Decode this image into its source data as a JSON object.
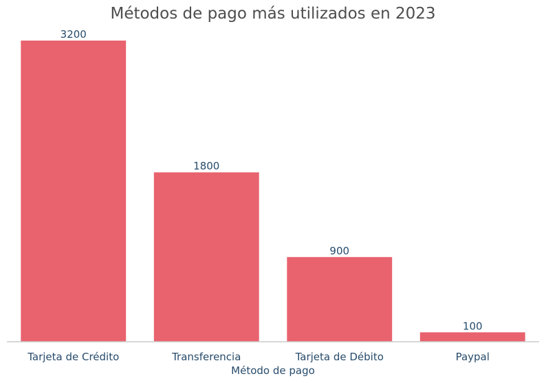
{
  "chart_data": {
    "type": "bar",
    "title": "Métodos de pago más utilizados en 2023",
    "xlabel": "Método de pago",
    "ylabel": "",
    "categories": [
      "Tarjeta de Crédito",
      "Transferencia",
      "Tarjeta de Débito",
      "Paypal"
    ],
    "values": [
      3200,
      1800,
      900,
      100
    ],
    "ylim": [
      0,
      3200
    ],
    "grid": false,
    "legend": "none",
    "bar_color": "#e8636e",
    "text_color": "#274b6b",
    "title_color": "#4d4d4d"
  }
}
